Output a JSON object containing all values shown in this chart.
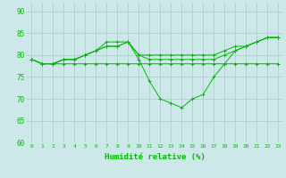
{
  "title": "",
  "xlabel": "Humidité relative (%)",
  "ylabel": "",
  "xlim": [
    -0.5,
    23.5
  ],
  "ylim": [
    60,
    92
  ],
  "yticks": [
    60,
    65,
    70,
    75,
    80,
    85,
    90
  ],
  "xtick_labels": [
    "0",
    "1",
    "2",
    "3",
    "4",
    "5",
    "6",
    "7",
    "8",
    "9",
    "10",
    "11",
    "12",
    "13",
    "14",
    "15",
    "16",
    "17",
    "18",
    "19",
    "20",
    "21",
    "22",
    "23"
  ],
  "background_color": "#cce8e8",
  "grid_color": "#aacccc",
  "line_color": "#00bb00",
  "marker": "+",
  "series": [
    [
      79,
      78,
      78,
      79,
      79,
      80,
      81,
      83,
      83,
      83,
      79,
      74,
      70,
      69,
      68,
      70,
      71,
      75,
      78,
      81,
      82,
      83,
      84,
      84
    ],
    [
      79,
      78,
      78,
      78,
      78,
      78,
      78,
      78,
      78,
      78,
      78,
      78,
      78,
      78,
      78,
      78,
      78,
      78,
      78,
      78,
      78,
      78,
      78,
      78
    ],
    [
      79,
      78,
      78,
      79,
      79,
      80,
      81,
      82,
      82,
      83,
      80,
      80,
      80,
      80,
      80,
      80,
      80,
      80,
      81,
      82,
      82,
      83,
      84,
      84
    ],
    [
      79,
      78,
      78,
      79,
      79,
      80,
      81,
      82,
      82,
      83,
      80,
      79,
      79,
      79,
      79,
      79,
      79,
      79,
      80,
      81,
      82,
      83,
      84,
      84
    ]
  ],
  "figwidth": 3.2,
  "figheight": 2.0,
  "dpi": 100
}
